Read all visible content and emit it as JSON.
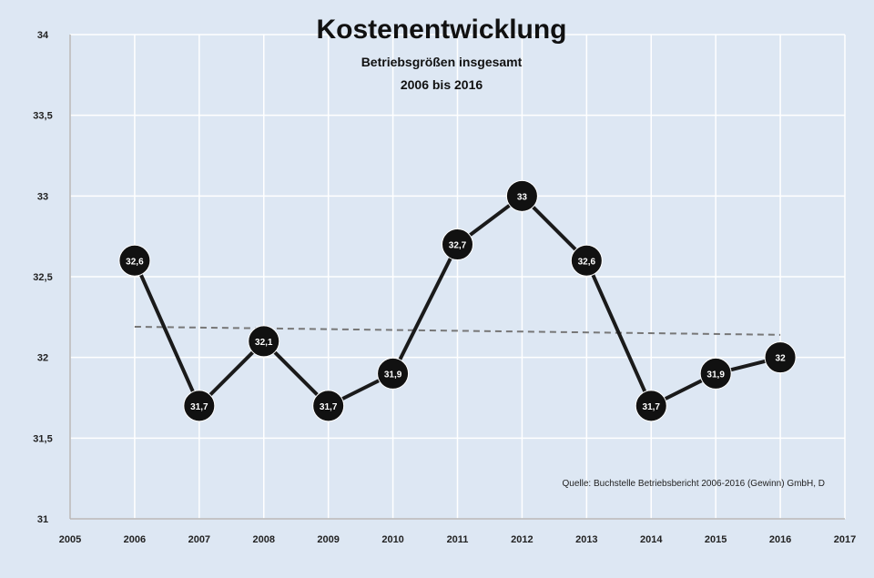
{
  "chart_data": {
    "type": "line",
    "title": "Kostenentwicklung",
    "subtitle_line1": "Betriebsgrößen insgesamt",
    "subtitle_line2": "2006 bis 2016",
    "xlabel": "",
    "ylabel": "",
    "xlim": [
      2005,
      2017
    ],
    "ylim": [
      31,
      34
    ],
    "x_ticks": [
      "2005",
      "2006",
      "2007",
      "2008",
      "2009",
      "2010",
      "2011",
      "2012",
      "2013",
      "2014",
      "2015",
      "2016",
      "2017"
    ],
    "y_ticks": [
      "31",
      "31,5",
      "32",
      "32,5",
      "33",
      "33,5",
      "34"
    ],
    "grid": true,
    "series": [
      {
        "x": [
          2006,
          2007,
          2008,
          2009,
          2010,
          2011,
          2012,
          2013,
          2014,
          2015,
          2016
        ],
        "values": [
          32.6,
          31.7,
          32.1,
          31.7,
          31.9,
          32.7,
          33.0,
          32.6,
          31.7,
          31.9,
          32.0
        ],
        "labels": [
          "32,6",
          "31,7",
          "32,1",
          "31,7",
          "31,9",
          "32,7",
          "33",
          "32,6",
          "31,7",
          "31,9",
          "32"
        ],
        "color": "#1a1a1a"
      }
    ],
    "trend": {
      "x": [
        2006,
        2016
      ],
      "values": [
        32.19,
        32.14
      ],
      "color": "#777777"
    },
    "annotation": "Quelle: Buchstelle Betriebsbericht 2006-2016 (Gewinn) GmbH, D"
  },
  "colors": {
    "background": "#dde7f3",
    "grid": "#ffffff",
    "marker_fill": "#111111",
    "marker_text": "#ffffff"
  }
}
